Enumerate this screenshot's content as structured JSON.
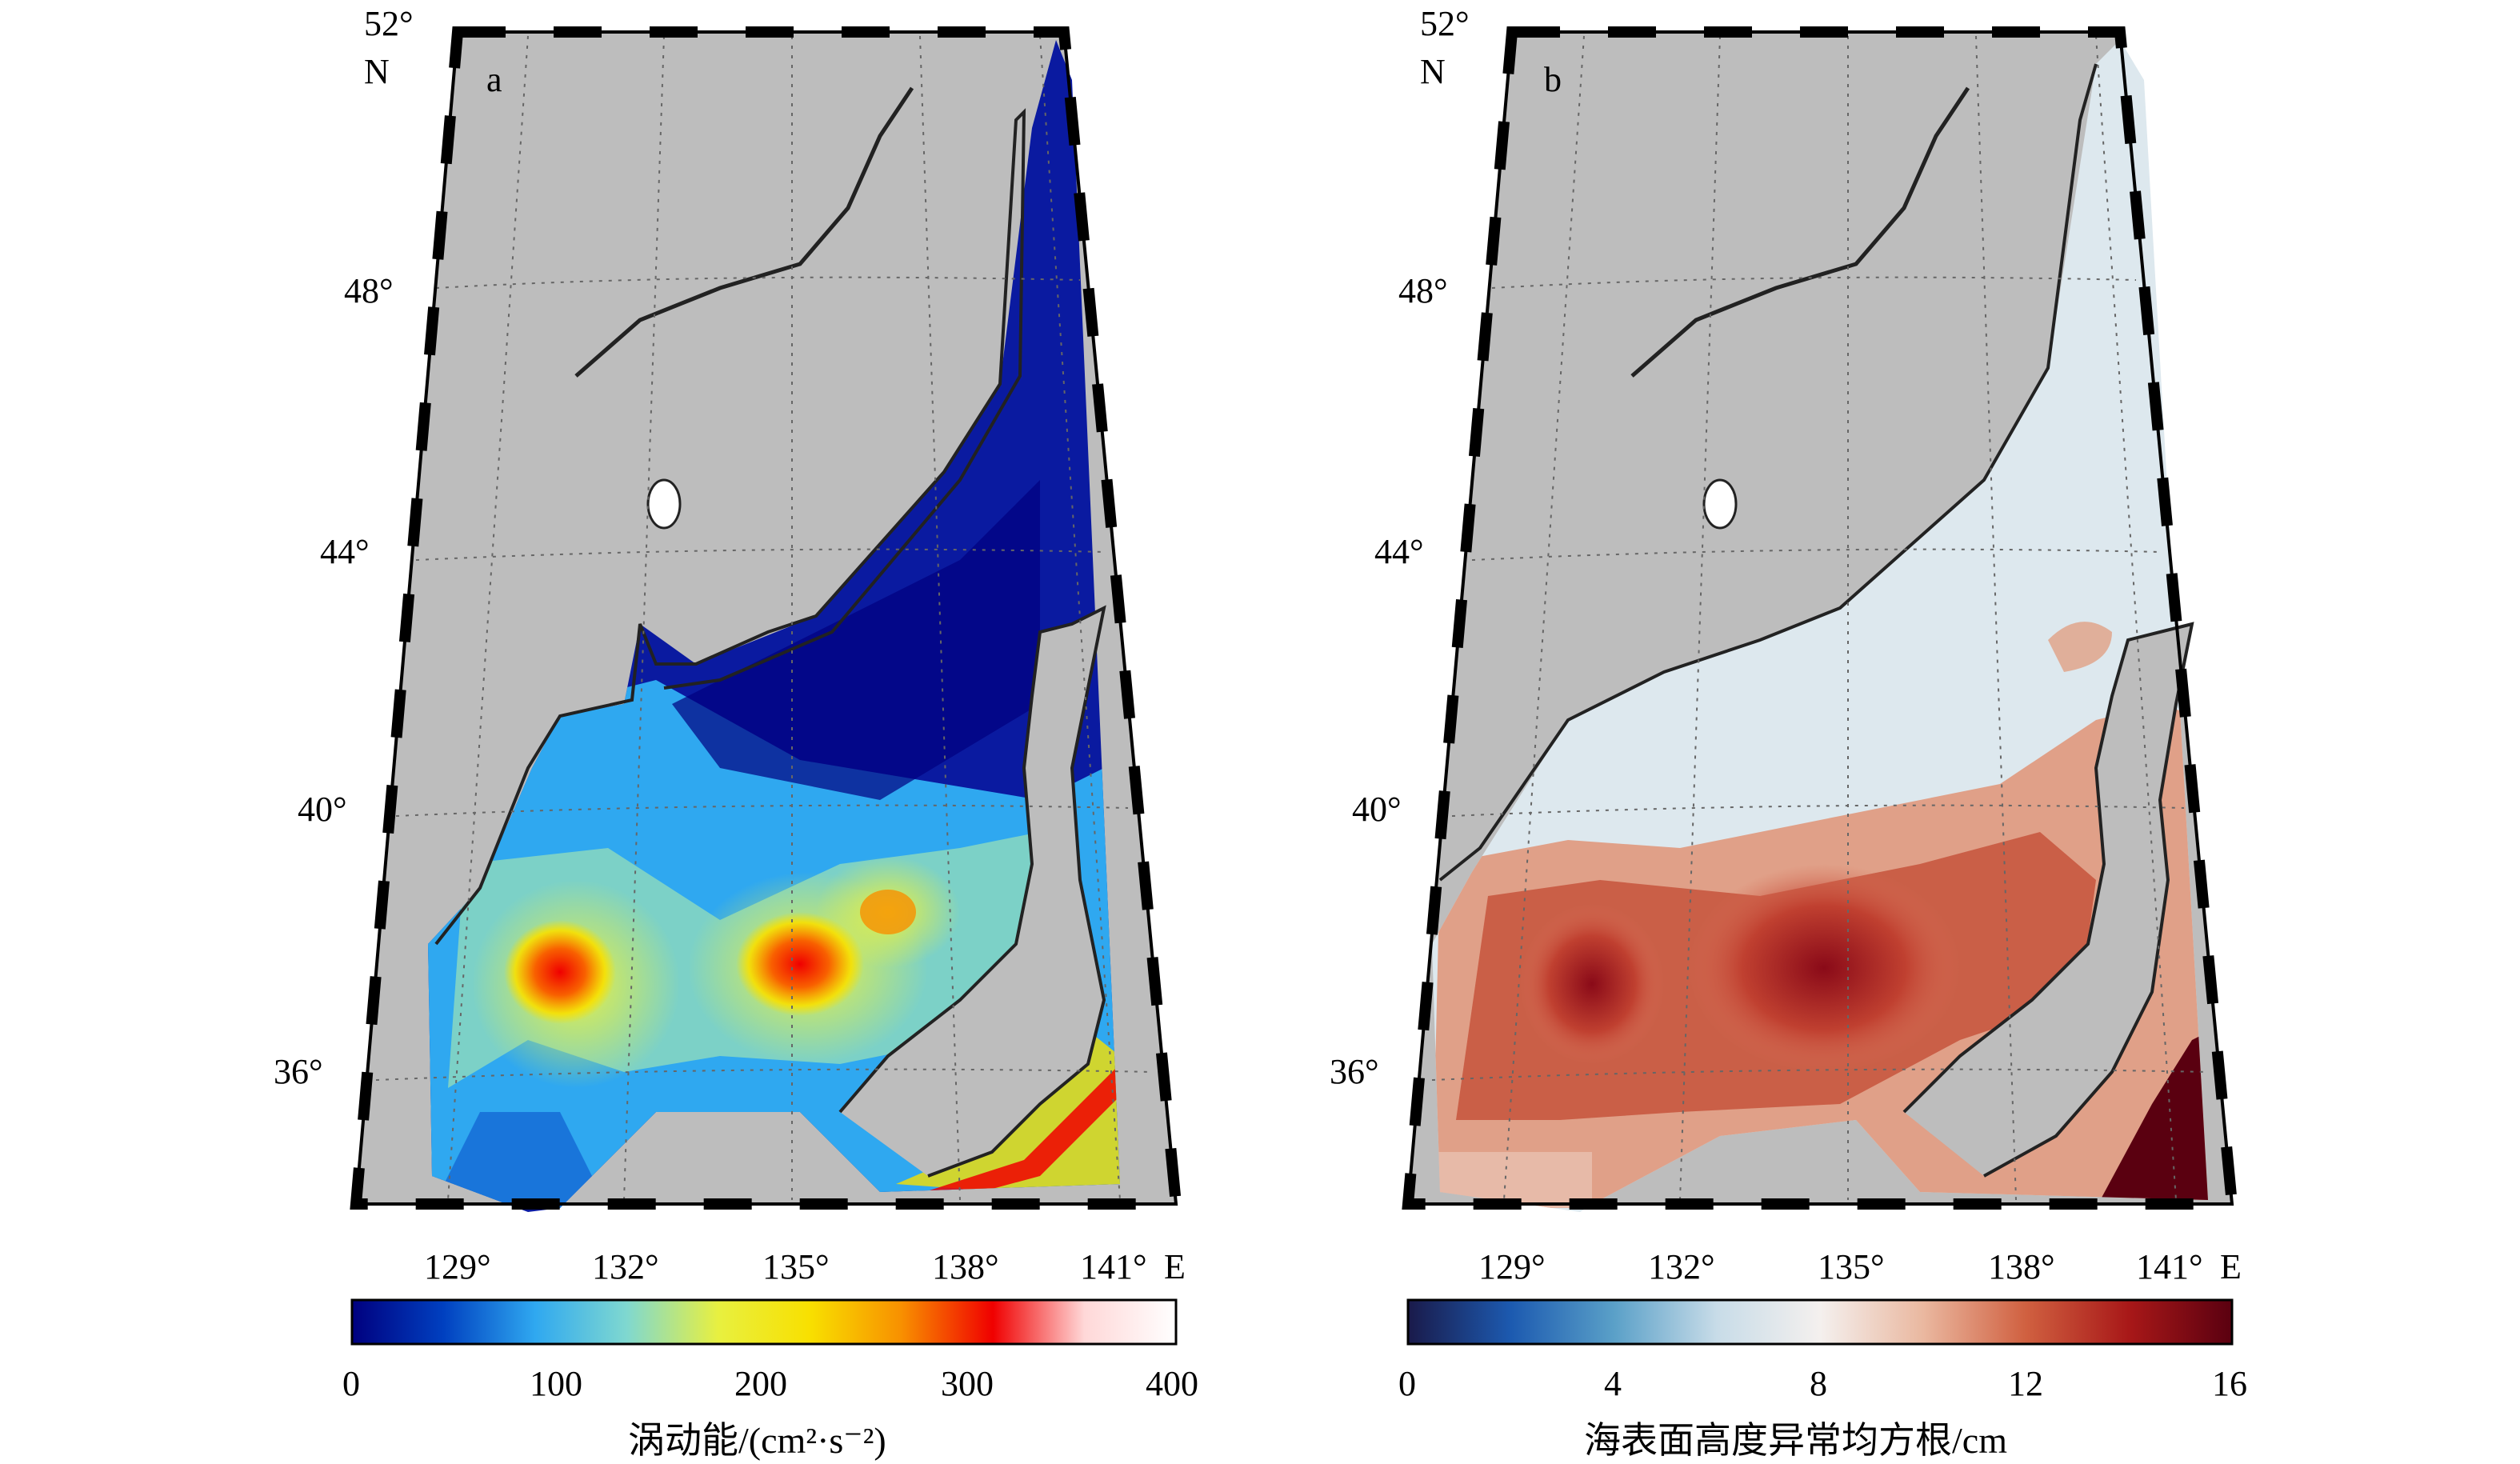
{
  "panels": [
    {
      "letter": "a",
      "lat_labels": [
        "52°",
        "48°",
        "44°",
        "40°",
        "36°"
      ],
      "lat_suffix": "N",
      "lon_labels": [
        "129°",
        "132°",
        "135°",
        "138°",
        "141°"
      ],
      "lon_suffix": "E",
      "colorbar": {
        "ticks": [
          "0",
          "100",
          "200",
          "300",
          "400"
        ],
        "title": "涡动能/(cm²·s⁻²)",
        "colors": [
          "#00007f",
          "#0040c0",
          "#2fa8f0",
          "#7fd8d0",
          "#e8f040",
          "#f8e000",
          "#f89000",
          "#f00000",
          "#ffd8d8",
          "#ffffff"
        ]
      }
    },
    {
      "letter": "b",
      "lat_labels": [
        "52°",
        "48°",
        "44°",
        "40°",
        "36°"
      ],
      "lat_suffix": "N",
      "lon_labels": [
        "129°",
        "132°",
        "135°",
        "138°",
        "141°"
      ],
      "lon_suffix": "E",
      "colorbar": {
        "ticks": [
          "0",
          "4",
          "8",
          "12",
          "16"
        ],
        "title": "海表面高度异常均方根/cm",
        "colors": [
          "#1a1a4a",
          "#1c5ab0",
          "#5aa0c8",
          "#c8dce8",
          "#f4f0ee",
          "#eab8a0",
          "#d06040",
          "#a81818",
          "#5a0010"
        ]
      }
    }
  ]
}
